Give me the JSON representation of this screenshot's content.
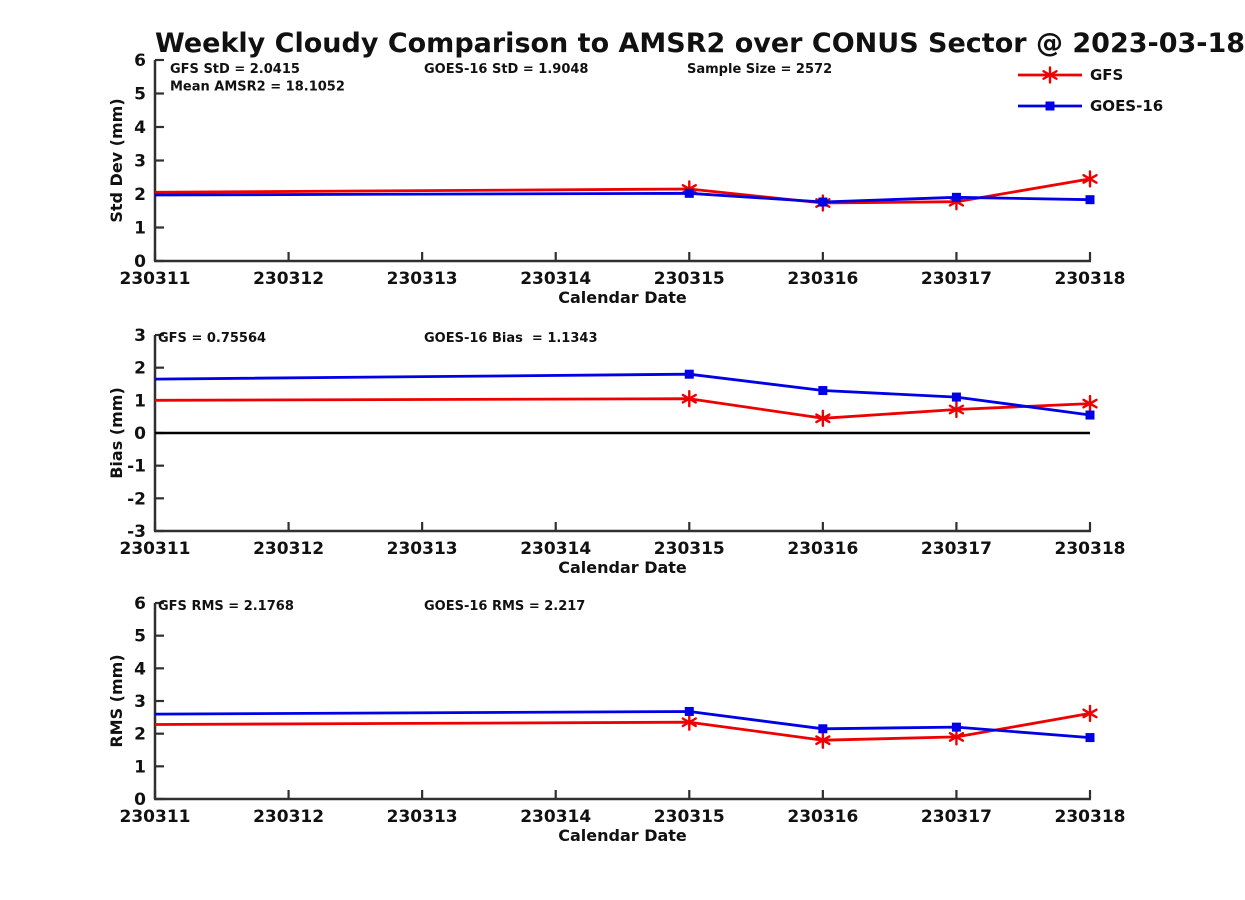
{
  "title": "Weekly Cloudy Comparison to AMSR2 over CONUS Sector @ 2023-03-18",
  "colors": {
    "gfs": "#ee0000",
    "goes16": "#0000e6",
    "axis": "#303030",
    "text": "#111111",
    "zero_line": "#000000"
  },
  "chart_data": [
    {
      "id": "stddev",
      "type": "line",
      "ylabel": "Std Dev (mm)",
      "xlabel": "Calendar Date",
      "x_ticks": [
        "230311",
        "230312",
        "230313",
        "230314",
        "230315",
        "230316",
        "230317",
        "230318"
      ],
      "ylim": [
        0,
        6
      ],
      "y_ticks": [
        0,
        1,
        2,
        3,
        4,
        5,
        6
      ],
      "zero_line": false,
      "annotations": [
        {
          "text": "GFS StD = 2.0415",
          "x": 170,
          "row": 0
        },
        {
          "text": "GOES-16 StD = 1.9048",
          "x": 424,
          "row": 0
        },
        {
          "text": "Sample Size = 2572",
          "x": 687,
          "row": 0
        },
        {
          "text": "Mean AMSR2 = 18.1052",
          "x": 170,
          "row": 1
        }
      ],
      "series": [
        {
          "name": "GFS",
          "color": "#ee0000",
          "marker": "asterisk",
          "points": [
            {
              "date": "230311",
              "value": 2.05,
              "show_marker": false
            },
            {
              "date": "230315",
              "value": 2.15,
              "show_marker": true
            },
            {
              "date": "230316",
              "value": 1.73,
              "show_marker": true
            },
            {
              "date": "230317",
              "value": 1.77,
              "show_marker": true
            },
            {
              "date": "230318",
              "value": 2.45,
              "show_marker": true
            }
          ]
        },
        {
          "name": "GOES-16",
          "color": "#0000e6",
          "marker": "square",
          "points": [
            {
              "date": "230311",
              "value": 1.97,
              "show_marker": false
            },
            {
              "date": "230315",
              "value": 2.02,
              "show_marker": true
            },
            {
              "date": "230316",
              "value": 1.76,
              "show_marker": true
            },
            {
              "date": "230317",
              "value": 1.9,
              "show_marker": true
            },
            {
              "date": "230318",
              "value": 1.83,
              "show_marker": true
            }
          ]
        }
      ]
    },
    {
      "id": "bias",
      "type": "line",
      "ylabel": "Bias (mm)",
      "xlabel": "Calendar Date",
      "x_ticks": [
        "230311",
        "230312",
        "230313",
        "230314",
        "230315",
        "230316",
        "230317",
        "230318"
      ],
      "ylim": [
        -3,
        3
      ],
      "y_ticks": [
        -3,
        -2,
        -1,
        0,
        1,
        2,
        3
      ],
      "zero_line": true,
      "annotations": [
        {
          "text": "GFS = 0.75564",
          "x": 158,
          "row": 0
        },
        {
          "text": "GOES-16 Bias  = 1.1343",
          "x": 424,
          "row": 0
        }
      ],
      "series": [
        {
          "name": "GFS",
          "color": "#ee0000",
          "marker": "asterisk",
          "points": [
            {
              "date": "230311",
              "value": 1.0,
              "show_marker": false
            },
            {
              "date": "230315",
              "value": 1.05,
              "show_marker": true
            },
            {
              "date": "230316",
              "value": 0.45,
              "show_marker": true
            },
            {
              "date": "230317",
              "value": 0.72,
              "show_marker": true
            },
            {
              "date": "230318",
              "value": 0.9,
              "show_marker": true
            }
          ]
        },
        {
          "name": "GOES-16",
          "color": "#0000e6",
          "marker": "square",
          "points": [
            {
              "date": "230311",
              "value": 1.65,
              "show_marker": false
            },
            {
              "date": "230315",
              "value": 1.8,
              "show_marker": true
            },
            {
              "date": "230316",
              "value": 1.3,
              "show_marker": true
            },
            {
              "date": "230317",
              "value": 1.1,
              "show_marker": true
            },
            {
              "date": "230318",
              "value": 0.55,
              "show_marker": true
            }
          ]
        }
      ]
    },
    {
      "id": "rms",
      "type": "line",
      "ylabel": "RMS (mm)",
      "xlabel": "Calendar Date",
      "x_ticks": [
        "230311",
        "230312",
        "230313",
        "230314",
        "230315",
        "230316",
        "230317",
        "230318"
      ],
      "ylim": [
        0,
        6
      ],
      "y_ticks": [
        0,
        1,
        2,
        3,
        4,
        5,
        6
      ],
      "zero_line": false,
      "annotations": [
        {
          "text": "GFS RMS = 2.1768",
          "x": 158,
          "row": 0
        },
        {
          "text": "GOES-16 RMS = 2.217",
          "x": 424,
          "row": 0
        }
      ],
      "series": [
        {
          "name": "GFS",
          "color": "#ee0000",
          "marker": "asterisk",
          "points": [
            {
              "date": "230311",
              "value": 2.28,
              "show_marker": false
            },
            {
              "date": "230315",
              "value": 2.35,
              "show_marker": true
            },
            {
              "date": "230316",
              "value": 1.8,
              "show_marker": true
            },
            {
              "date": "230317",
              "value": 1.9,
              "show_marker": true
            },
            {
              "date": "230318",
              "value": 2.62,
              "show_marker": true
            }
          ]
        },
        {
          "name": "GOES-16",
          "color": "#0000e6",
          "marker": "square",
          "points": [
            {
              "date": "230311",
              "value": 2.6,
              "show_marker": false
            },
            {
              "date": "230315",
              "value": 2.68,
              "show_marker": true
            },
            {
              "date": "230316",
              "value": 2.15,
              "show_marker": true
            },
            {
              "date": "230317",
              "value": 2.2,
              "show_marker": true
            },
            {
              "date": "230318",
              "value": 1.88,
              "show_marker": true
            }
          ]
        }
      ]
    }
  ]
}
